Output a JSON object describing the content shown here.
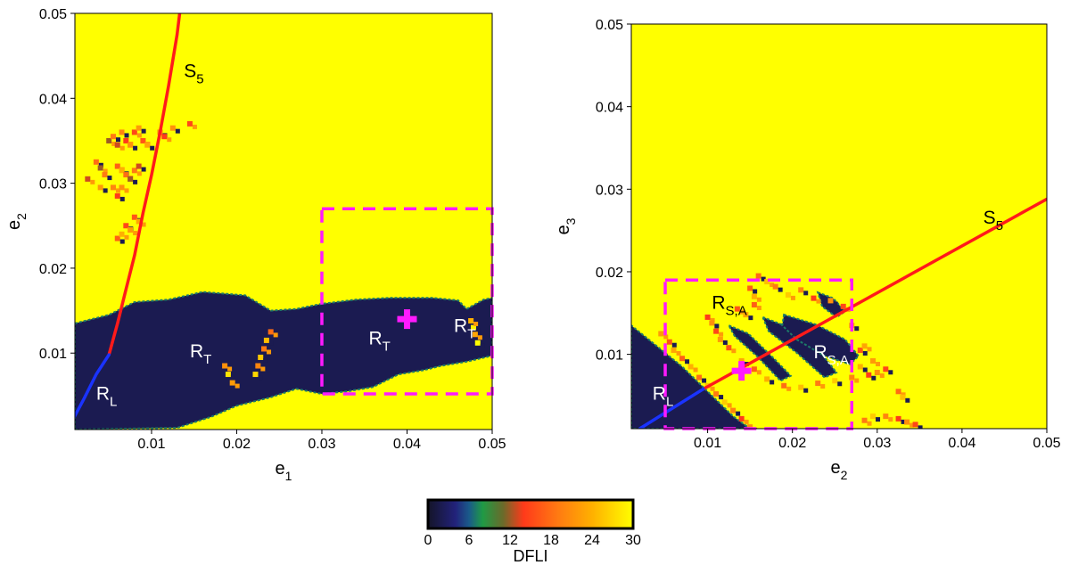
{
  "chart_data": [
    {
      "type": "heatmap",
      "panel": "left",
      "xlabel": {
        "main": "e",
        "sub": "1"
      },
      "ylabel": {
        "main": "e",
        "sub": "2"
      },
      "xlim": [
        0.001,
        0.05
      ],
      "ylim": [
        0.001,
        0.05
      ],
      "xticks": [
        0.01,
        0.02,
        0.03,
        0.04,
        0.05
      ],
      "xtick_labels": [
        "0.01",
        "0.02",
        "0.03",
        "0.04",
        "0.05"
      ],
      "yticks": [
        0.01,
        0.02,
        0.03,
        0.04,
        0.05
      ],
      "ytick_labels": [
        "0.01",
        "0.02",
        "0.03",
        "0.04",
        "0.05"
      ],
      "value": "DFLI",
      "background_value": 30,
      "regions": [
        {
          "name": "R_T low-DFLI band (main)",
          "dfli": 2,
          "polygon": [
            [
              0.001,
              0.0135
            ],
            [
              0.005,
              0.0145
            ],
            [
              0.008,
              0.016
            ],
            [
              0.012,
              0.0163
            ],
            [
              0.016,
              0.0172
            ],
            [
              0.021,
              0.0168
            ],
            [
              0.024,
              0.015
            ],
            [
              0.027,
              0.0152
            ],
            [
              0.03,
              0.0158
            ],
            [
              0.034,
              0.0163
            ],
            [
              0.038,
              0.0165
            ],
            [
              0.043,
              0.0165
            ],
            [
              0.046,
              0.0162
            ],
            [
              0.047,
              0.0152
            ],
            [
              0.049,
              0.0163
            ],
            [
              0.05,
              0.0165
            ],
            [
              0.05,
              0.0097
            ],
            [
              0.047,
              0.009
            ],
            [
              0.044,
              0.0085
            ],
            [
              0.042,
              0.008
            ],
            [
              0.039,
              0.0075
            ],
            [
              0.036,
              0.006
            ],
            [
              0.033,
              0.0055
            ],
            [
              0.03,
              0.0052
            ],
            [
              0.027,
              0.0058
            ],
            [
              0.024,
              0.0048
            ],
            [
              0.02,
              0.0038
            ],
            [
              0.017,
              0.0025
            ],
            [
              0.013,
              0.0012
            ],
            [
              0.001,
              0.001
            ]
          ]
        }
      ],
      "chaotic_bands": [
        {
          "dfli": 18,
          "points": [
            [
              0.005,
              0.035
            ],
            [
              0.0055,
              0.0355
            ],
            [
              0.006,
              0.0345
            ],
            [
              0.0065,
              0.036
            ],
            [
              0.007,
              0.035
            ],
            [
              0.0075,
              0.0345
            ],
            [
              0.008,
              0.036
            ],
            [
              0.0085,
              0.0365
            ],
            [
              0.009,
              0.035
            ],
            [
              0.0095,
              0.0345
            ],
            [
              0.006,
              0.032
            ],
            [
              0.0065,
              0.0315
            ],
            [
              0.007,
              0.031
            ],
            [
              0.0075,
              0.0305
            ],
            [
              0.008,
              0.0315
            ],
            [
              0.0085,
              0.032
            ],
            [
              0.0055,
              0.0295
            ],
            [
              0.006,
              0.0285
            ],
            [
              0.0065,
              0.0295
            ],
            [
              0.007,
              0.025
            ],
            [
              0.0075,
              0.0245
            ],
            [
              0.008,
              0.026
            ],
            [
              0.0085,
              0.0255
            ],
            [
              0.006,
              0.0235
            ],
            [
              0.0065,
              0.024
            ],
            [
              0.0035,
              0.0325
            ],
            [
              0.004,
              0.0318
            ],
            [
              0.0045,
              0.031
            ],
            [
              0.0025,
              0.0305
            ],
            [
              0.011,
              0.036
            ],
            [
              0.0115,
              0.0355
            ],
            [
              0.0125,
              0.0365
            ],
            [
              0.0145,
              0.037
            ],
            [
              0.004,
              0.0295
            ]
          ]
        },
        {
          "dfli": 24,
          "points": [
            [
              0.024,
              0.0125
            ],
            [
              0.0235,
              0.0115
            ],
            [
              0.0232,
              0.0105
            ],
            [
              0.0228,
              0.0095
            ],
            [
              0.0225,
              0.0085
            ],
            [
              0.0222,
              0.0075
            ],
            [
              0.0186,
              0.0085
            ],
            [
              0.019,
              0.0075
            ],
            [
              0.0195,
              0.0065
            ],
            [
              0.0478,
              0.013
            ],
            [
              0.048,
              0.0122
            ],
            [
              0.0483,
              0.0112
            ],
            [
              0.0475,
              0.0138
            ]
          ]
        }
      ],
      "curves": [
        {
          "name": "S5",
          "color": "#ff1a1a",
          "points": [
            [
              0.005,
              0.0098
            ],
            [
              0.006,
              0.0135
            ],
            [
              0.007,
              0.0175
            ],
            [
              0.008,
              0.0215
            ],
            [
              0.009,
              0.0265
            ],
            [
              0.01,
              0.031
            ],
            [
              0.011,
              0.036
            ],
            [
              0.012,
              0.0415
            ],
            [
              0.013,
              0.0475
            ],
            [
              0.0133,
              0.05
            ]
          ]
        },
        {
          "name": "S5 (stable part)",
          "color": "#1a33ff",
          "points": [
            [
              0.0003,
              0.0013
            ],
            [
              0.002,
              0.0045
            ],
            [
              0.0035,
              0.0075
            ],
            [
              0.005,
              0.0098
            ]
          ]
        }
      ],
      "dashed_box": {
        "color": "#ff1aff",
        "x": [
          0.03,
          0.05
        ],
        "y": [
          0.0052,
          0.027
        ]
      },
      "marker": {
        "symbol": "plus",
        "color": "#ff1aff",
        "at": [
          0.04,
          0.014
        ]
      },
      "labels": [
        {
          "main": "S",
          "sub": "5",
          "at": [
            0.0138,
            0.0425
          ],
          "color": "#000000"
        },
        {
          "main": "R",
          "sub": "L",
          "at": [
            0.0035,
            0.0045
          ],
          "color": "#ffffff"
        },
        {
          "main": "R",
          "sub": "T",
          "at": [
            0.0145,
            0.0095
          ],
          "color": "#ffffff"
        },
        {
          "main": "R",
          "sub": "T",
          "at": [
            0.0355,
            0.011
          ],
          "color": "#ffffff"
        },
        {
          "main": "R",
          "sub": "T",
          "at": [
            0.0455,
            0.0125
          ],
          "color": "#ffffff"
        }
      ]
    },
    {
      "type": "heatmap",
      "panel": "right",
      "xlabel": {
        "main": "e",
        "sub": "2"
      },
      "ylabel": {
        "main": "e",
        "sub": "3"
      },
      "xlim": [
        0.001,
        0.05
      ],
      "ylim": [
        0.001,
        0.05
      ],
      "xticks": [
        0.01,
        0.02,
        0.03,
        0.04,
        0.05
      ],
      "xtick_labels": [
        "0.01",
        "0.02",
        "0.03",
        "0.04",
        "0.05"
      ],
      "yticks": [
        0.01,
        0.02,
        0.03,
        0.04,
        0.05
      ],
      "ytick_labels": [
        "0.01",
        "0.02",
        "0.03",
        "0.04",
        "0.05"
      ],
      "value": "DFLI",
      "background_value": 30,
      "regions": [
        {
          "name": "R_L low-DFLI triangle",
          "dfli": 2,
          "polygon": [
            [
              0.001,
              0.001
            ],
            [
              0.001,
              0.0135
            ],
            [
              0.004,
              0.011
            ],
            [
              0.007,
              0.0085
            ],
            [
              0.009,
              0.0065
            ],
            [
              0.011,
              0.0045
            ],
            [
              0.013,
              0.0025
            ],
            [
              0.015,
              0.001
            ]
          ]
        },
        {
          "name": "R_S,A stripe 1",
          "dfli": 2,
          "polygon": [
            [
              0.0125,
              0.0135
            ],
            [
              0.0148,
              0.0125
            ],
            [
              0.0178,
              0.0095
            ],
            [
              0.0198,
              0.0074
            ],
            [
              0.0186,
              0.0068
            ],
            [
              0.0158,
              0.0098
            ],
            [
              0.0132,
              0.0122
            ]
          ]
        },
        {
          "name": "R_S,A stripe 2",
          "dfli": 2,
          "polygon": [
            [
              0.0165,
              0.0145
            ],
            [
              0.0195,
              0.0133
            ],
            [
              0.0235,
              0.01
            ],
            [
              0.0252,
              0.0078
            ],
            [
              0.0238,
              0.0072
            ],
            [
              0.0205,
              0.0102
            ],
            [
              0.0172,
              0.0128
            ]
          ]
        },
        {
          "name": "R_S,A blob",
          "dfli": 2,
          "polygon": [
            [
              0.019,
              0.0148
            ],
            [
              0.0228,
              0.0136
            ],
            [
              0.0262,
              0.0118
            ],
            [
              0.0278,
              0.0098
            ],
            [
              0.0268,
              0.0088
            ],
            [
              0.0238,
              0.0098
            ],
            [
              0.0205,
              0.0118
            ],
            [
              0.0188,
              0.0135
            ]
          ]
        },
        {
          "name": "R_S,A stripe 3",
          "dfli": 2,
          "polygon": [
            [
              0.023,
              0.0175
            ],
            [
              0.0248,
              0.0168
            ],
            [
              0.0262,
              0.0152
            ],
            [
              0.0252,
              0.0145
            ],
            [
              0.0235,
              0.0158
            ]
          ]
        }
      ],
      "chaotic_bands": [
        {
          "dfli": 20,
          "points": [
            [
              0.01,
              0.0145
            ],
            [
              0.0105,
              0.0138
            ],
            [
              0.011,
              0.0128
            ],
            [
              0.0115,
              0.0118
            ],
            [
              0.0125,
              0.0108
            ],
            [
              0.014,
              0.0092
            ],
            [
              0.0155,
              0.0082
            ],
            [
              0.017,
              0.007
            ],
            [
              0.019,
              0.0062
            ],
            [
              0.021,
              0.006
            ],
            [
              0.023,
              0.0065
            ],
            [
              0.025,
              0.0068
            ],
            [
              0.027,
              0.0072
            ],
            [
              0.029,
              0.0075
            ],
            [
              0.03,
              0.0078
            ],
            [
              0.031,
              0.0082
            ],
            [
              0.0295,
              0.0092
            ],
            [
              0.028,
              0.0105
            ],
            [
              0.0285,
              0.011
            ],
            [
              0.015,
              0.018
            ],
            [
              0.0155,
              0.017
            ],
            [
              0.016,
              0.0195
            ],
            [
              0.017,
              0.0188
            ],
            [
              0.018,
              0.0182
            ],
            [
              0.0195,
              0.0172
            ],
            [
              0.021,
              0.0178
            ],
            [
              0.0225,
              0.0168
            ],
            [
              0.0245,
              0.0165
            ],
            [
              0.026,
              0.0158
            ],
            [
              0.027,
              0.0135
            ],
            [
              0.0135,
              0.0155
            ],
            [
              0.0145,
              0.0148
            ],
            [
              0.0155,
              0.016
            ],
            [
              0.028,
              0.0085
            ],
            [
              0.0325,
              0.0055
            ],
            [
              0.033,
              0.0048
            ],
            [
              0.0285,
              0.002
            ],
            [
              0.0295,
              0.0025
            ],
            [
              0.031,
              0.0025
            ],
            [
              0.0325,
              0.0022
            ],
            [
              0.0335,
              0.0018
            ],
            [
              0.0345,
              0.0015
            ],
            [
              0.0045,
              0.0125
            ],
            [
              0.0055,
              0.0115
            ],
            [
              0.006,
              0.0105
            ],
            [
              0.007,
              0.0095
            ],
            [
              0.008,
              0.0085
            ],
            [
              0.009,
              0.0072
            ],
            [
              0.01,
              0.0062
            ],
            [
              0.011,
              0.0052
            ],
            [
              0.012,
              0.0042
            ],
            [
              0.013,
              0.0032
            ],
            [
              0.014,
              0.0022
            ],
            [
              0.015,
              0.0012
            ]
          ]
        }
      ],
      "curves": [
        {
          "name": "S5",
          "color": "#ff1a1a",
          "points": [
            [
              0.0095,
              0.0058
            ],
            [
              0.05,
              0.0288
            ]
          ]
        },
        {
          "name": "S5 (stable part)",
          "color": "#1a33ff",
          "points": [
            [
              0.002,
              0.001
            ],
            [
              0.0095,
              0.0058
            ]
          ]
        }
      ],
      "dashed_box": {
        "color": "#ff1aff",
        "x": [
          0.005,
          0.027
        ],
        "y": [
          0.001,
          0.019
        ]
      },
      "marker": {
        "symbol": "plus",
        "color": "#ff1aff",
        "at": [
          0.014,
          0.008
        ]
      },
      "labels": [
        {
          "main": "S",
          "sub": "5",
          "at": [
            0.0425,
            0.0258
          ],
          "color": "#000000"
        },
        {
          "main": "R",
          "sub": "S,A",
          "at": [
            0.0105,
            0.0155
          ],
          "color": "#000000"
        },
        {
          "main": "R",
          "sub": "S,A",
          "at": [
            0.0225,
            0.0095
          ],
          "color": "#ffffff"
        },
        {
          "main": "R",
          "sub": "L",
          "at": [
            0.0035,
            0.0045
          ],
          "color": "#ffffff"
        }
      ]
    }
  ],
  "colorbar": {
    "label": "DFLI",
    "range": [
      0,
      30
    ],
    "ticks": [
      0,
      6,
      12,
      18,
      24,
      30
    ],
    "tick_labels": [
      "0",
      "6",
      "12",
      "18",
      "24",
      "30"
    ],
    "colormap": [
      {
        "value": 0,
        "color": "#141428"
      },
      {
        "value": 4,
        "color": "#22227a"
      },
      {
        "value": 6,
        "color": "#1a5a8a"
      },
      {
        "value": 8,
        "color": "#1f9a45"
      },
      {
        "value": 11,
        "color": "#6b6a2a"
      },
      {
        "value": 14,
        "color": "#ff3a1a"
      },
      {
        "value": 19,
        "color": "#ff7a12"
      },
      {
        "value": 24,
        "color": "#ffb000"
      },
      {
        "value": 30,
        "color": "#ffff00"
      }
    ]
  }
}
